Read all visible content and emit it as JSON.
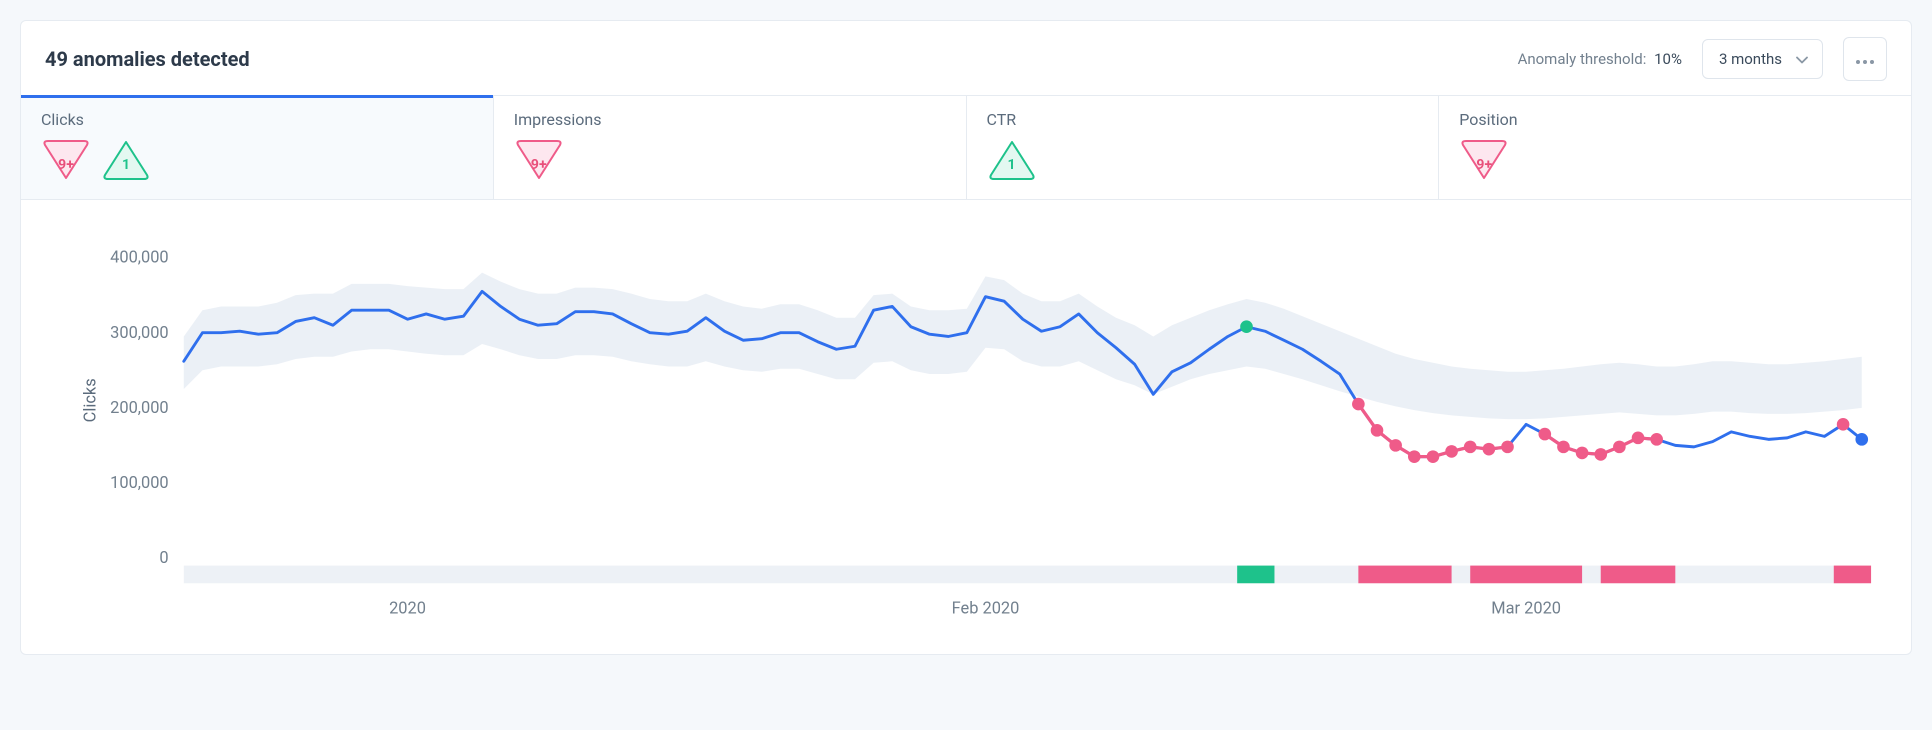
{
  "header": {
    "title": "49 anomalies detected",
    "threshold_label": "Anomaly threshold:",
    "threshold_value": "10%",
    "range_selected": "3 months"
  },
  "tabs": [
    {
      "id": "clicks",
      "label": "Clicks",
      "active": true,
      "badges": [
        {
          "kind": "pink",
          "text": "9+"
        },
        {
          "kind": "green",
          "text": "1"
        }
      ]
    },
    {
      "id": "impressions",
      "label": "Impressions",
      "active": false,
      "badges": [
        {
          "kind": "pink",
          "text": "9+"
        }
      ]
    },
    {
      "id": "ctr",
      "label": "CTR",
      "active": false,
      "badges": [
        {
          "kind": "green",
          "text": "1"
        }
      ]
    },
    {
      "id": "position",
      "label": "Position",
      "active": false,
      "badges": [
        {
          "kind": "pink",
          "text": "9+"
        }
      ]
    }
  ],
  "chart": {
    "type": "line",
    "y_label": "Clicks",
    "y_ticks": [
      0,
      100000,
      200000,
      300000,
      400000
    ],
    "y_tick_format": "comma",
    "ylim": [
      0,
      420000
    ],
    "x_ticks": [
      {
        "x": 12,
        "label": "2020"
      },
      {
        "x": 43,
        "label": "Feb 2020"
      },
      {
        "x": 72,
        "label": "Mar 2020"
      }
    ],
    "n_points": 91,
    "colors": {
      "line": "#2f6fed",
      "band": "#e9eef5",
      "anomaly_pink": "#ef5b89",
      "anomaly_pink_fill": "#ef5b89",
      "anomaly_green": "#1ec28b",
      "end_dot": "#2f6fed",
      "track_bg": "#edf1f6",
      "bg": "#ffffff",
      "axis_text": "#72808e"
    },
    "line_width": 2.3,
    "marker_radius": 5,
    "end_marker_radius": 5,
    "band_upper": [
      295000,
      330000,
      335000,
      335000,
      335000,
      340000,
      350000,
      352000,
      352000,
      365000,
      365000,
      365000,
      362000,
      360000,
      358000,
      358000,
      380000,
      368000,
      358000,
      352000,
      352000,
      360000,
      360000,
      358000,
      352000,
      345000,
      342000,
      342000,
      352000,
      342000,
      335000,
      332000,
      338000,
      338000,
      330000,
      320000,
      320000,
      350000,
      352000,
      335000,
      330000,
      330000,
      332000,
      375000,
      370000,
      352000,
      342000,
      342000,
      352000,
      335000,
      320000,
      310000,
      295000,
      310000,
      320000,
      330000,
      338000,
      345000,
      340000,
      332000,
      322000,
      312000,
      302000,
      292000,
      282000,
      272000,
      265000,
      260000,
      255000,
      252000,
      250000,
      248000,
      248000,
      250000,
      252000,
      255000,
      258000,
      260000,
      258000,
      255000,
      255000,
      258000,
      262000,
      262000,
      260000,
      258000,
      258000,
      260000,
      262000,
      265000,
      268000
    ],
    "band_lower": [
      225000,
      250000,
      255000,
      255000,
      255000,
      258000,
      265000,
      268000,
      268000,
      275000,
      278000,
      278000,
      275000,
      272000,
      270000,
      270000,
      285000,
      278000,
      270000,
      265000,
      265000,
      270000,
      270000,
      268000,
      262000,
      258000,
      255000,
      255000,
      262000,
      255000,
      250000,
      248000,
      252000,
      252000,
      245000,
      238000,
      238000,
      260000,
      262000,
      250000,
      245000,
      245000,
      248000,
      280000,
      278000,
      262000,
      255000,
      255000,
      262000,
      250000,
      238000,
      230000,
      218000,
      228000,
      238000,
      245000,
      250000,
      255000,
      252000,
      245000,
      238000,
      230000,
      222000,
      215000,
      208000,
      202000,
      197000,
      193000,
      190000,
      188000,
      186000,
      185000,
      185000,
      186000,
      188000,
      190000,
      192000,
      194000,
      192000,
      190000,
      190000,
      192000,
      195000,
      195000,
      193000,
      192000,
      192000,
      193000,
      195000,
      197000,
      200000
    ],
    "values": [
      262000,
      300000,
      300000,
      302000,
      298000,
      300000,
      315000,
      320000,
      310000,
      330000,
      330000,
      330000,
      318000,
      325000,
      318000,
      322000,
      355000,
      335000,
      318000,
      310000,
      312000,
      328000,
      328000,
      325000,
      312000,
      300000,
      298000,
      302000,
      320000,
      302000,
      290000,
      292000,
      300000,
      300000,
      288000,
      278000,
      282000,
      330000,
      335000,
      308000,
      298000,
      295000,
      300000,
      348000,
      342000,
      318000,
      302000,
      308000,
      325000,
      300000,
      280000,
      258000,
      218000,
      248000,
      260000,
      278000,
      295000,
      308000,
      302000,
      290000,
      278000,
      262000,
      245000,
      205000,
      170000,
      150000,
      135000,
      135000,
      142000,
      148000,
      145000,
      148000,
      178000,
      165000,
      148000,
      140000,
      138000,
      148000,
      160000,
      158000,
      150000,
      148000,
      155000,
      168000,
      162000,
      158000,
      160000,
      168000,
      162000,
      178000,
      158000
    ],
    "green_marker_x": 57,
    "pink_markers": [
      63,
      64,
      65,
      66,
      67,
      68,
      69,
      70,
      71,
      73,
      74,
      75,
      76,
      77,
      78,
      79,
      89
    ],
    "pink_segments": [
      [
        63,
        71
      ],
      [
        73,
        79
      ],
      [
        89,
        89
      ]
    ],
    "end_marker_x": 90,
    "track": {
      "green": [
        {
          "start": 56.5,
          "end": 58.5
        }
      ],
      "pink": [
        {
          "start": 63,
          "end": 68
        },
        {
          "start": 69,
          "end": 75
        },
        {
          "start": 76,
          "end": 80
        },
        {
          "start": 88.5,
          "end": 90.5
        }
      ]
    }
  }
}
